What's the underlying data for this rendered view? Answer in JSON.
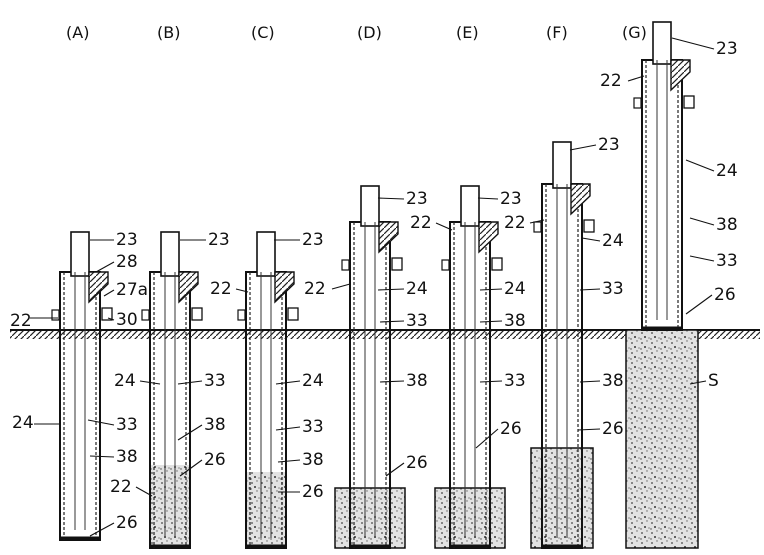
{
  "panels": [
    {
      "id": "A",
      "label": "(A)"
    },
    {
      "id": "B",
      "label": "(B)"
    },
    {
      "id": "C",
      "label": "(C)"
    },
    {
      "id": "D",
      "label": "(D)"
    },
    {
      "id": "E",
      "label": "(E)"
    },
    {
      "id": "F",
      "label": "(F)"
    },
    {
      "id": "G",
      "label": "(G)"
    }
  ],
  "refs": {
    "r22": "22",
    "r23": "23",
    "r24": "24",
    "r26": "26",
    "r27a": "27a",
    "r28": "28",
    "r30": "30",
    "r33": "33",
    "r38": "38",
    "rS": "S"
  },
  "colors": {
    "ink": "#111111",
    "paper": "#ffffff",
    "soil": "#d8d8d8"
  }
}
